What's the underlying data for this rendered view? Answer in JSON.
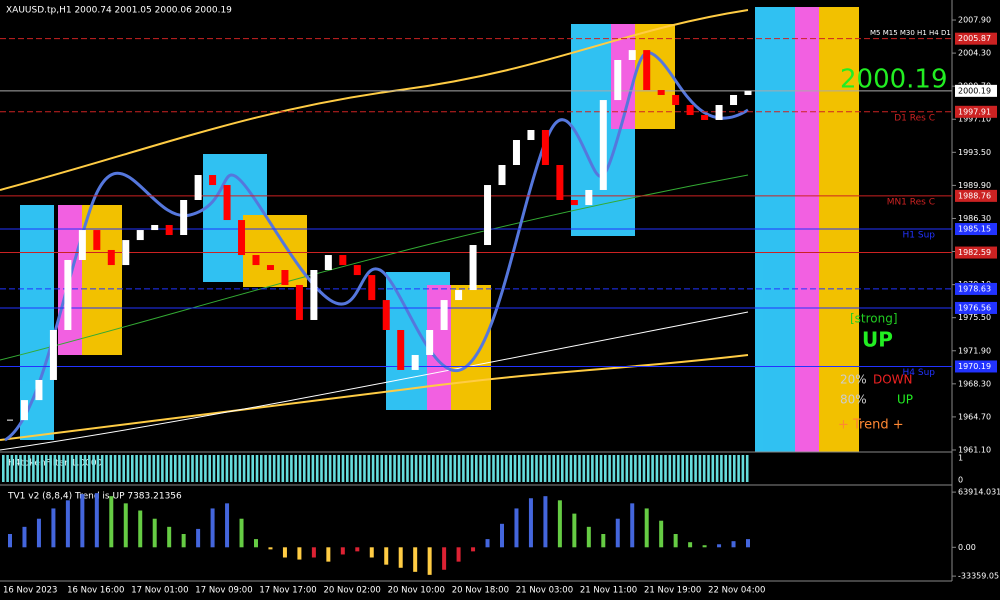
{
  "chart_data": {
    "type": "candlestick",
    "title": "XAUUSD.tp,H1  2000.74 2001.05 2000.06 2000.19",
    "close": [
      1964.35,
      1966.53,
      1968.72,
      1974.16,
      1981.78,
      1985.04,
      1982.87,
      1981.23,
      1983.95,
      1985.04,
      1985.59,
      1984.5,
      1988.31,
      1991.03,
      1989.94,
      1986.13,
      1982.32,
      1981.23,
      1980.69,
      1979.06,
      1975.25,
      1980.69,
      1982.32,
      1981.23,
      1980.14,
      1977.42,
      1974.16,
      1969.81,
      1971.44,
      1974.16,
      1977.42,
      1978.51,
      1983.41,
      1989.94,
      1992.12,
      1994.84,
      1995.93,
      1992.12,
      1988.31,
      1987.76,
      1989.4,
      1999.19,
      2003.55,
      2004.63,
      2000.28,
      1999.74,
      1998.65,
      1997.56,
      1997.02,
      1998.65,
      1999.74,
      2000.19
    ],
    "candle_colors": {
      "up": "#ffffff",
      "down": "#ff0000"
    },
    "ylim": [
      1960.88,
      2010.08
    ],
    "yticks": [
      {
        "value": 2007.9,
        "label": "2007.90"
      },
      {
        "value": 2004.3,
        "label": "2004.30"
      },
      {
        "value": 2000.7,
        "label": "2000.70"
      },
      {
        "value": 1997.1,
        "label": "1997.10"
      },
      {
        "value": 1993.5,
        "label": "1993.50"
      },
      {
        "value": 1989.9,
        "label": "1989.90"
      },
      {
        "value": 1986.3,
        "label": "1986.30"
      },
      {
        "value": 1982.7,
        "label": "1982.70"
      },
      {
        "value": 1979.1,
        "label": "1979.10"
      },
      {
        "value": 1975.5,
        "label": "1975.50"
      },
      {
        "value": 1971.9,
        "label": "1971.90"
      },
      {
        "value": 1968.3,
        "label": "1968.30"
      },
      {
        "value": 1964.7,
        "label": "1964.70"
      },
      {
        "value": 1961.1,
        "label": "1961.10"
      }
    ],
    "levels": [
      {
        "value": 2005.87,
        "label": "2005.87",
        "color": "#cc2222",
        "dash": true
      },
      {
        "value": 2000.19,
        "label": "2000.19",
        "color": "#aaaaaa",
        "dash": false
      },
      {
        "value": 1997.91,
        "label": "1997.91",
        "color": "#cc2222",
        "dash": true,
        "text": "D1 Res C"
      },
      {
        "value": 1988.76,
        "label": "1988.76",
        "color": "#cc2222",
        "dash": false,
        "text": "MN1 Res C"
      },
      {
        "value": 1985.15,
        "label": "1985.15",
        "color": "#2233ff",
        "dash": false,
        "text": "H1 Sup"
      },
      {
        "value": 1982.59,
        "label": "1982.59",
        "color": "#cc2222",
        "dash": false
      },
      {
        "value": 1978.63,
        "label": "1978.63",
        "color": "#2233ff",
        "dash": true
      },
      {
        "value": 1976.56,
        "label": "1976.56",
        "color": "#2233ff",
        "dash": false
      },
      {
        "value": 1970.19,
        "label": "1970.19",
        "color": "#2233ff",
        "dash": false,
        "text": "H4 Sup"
      }
    ],
    "info": {
      "timeframes": "M5 M15 M30 H1 H4 D1",
      "price": "2000.19",
      "strength": "[strong]",
      "direction": "UP",
      "down_pct": "20%",
      "down": "DOWN",
      "up_pct": "80%",
      "up": "UP",
      "trend": "+   Trend   +"
    },
    "filter": {
      "title": "H4tokenFilter 1.0000",
      "yticks": [
        1,
        0
      ],
      "color": "#66dddd"
    },
    "oscillator": {
      "title": "TV1 v2 (8,8,4) Trend is UP 7383.21356",
      "values": [
        15400,
        23700,
        33100,
        45000,
        54400,
        61500,
        62700,
        59200,
        50900,
        42600,
        33100,
        23700,
        15400,
        21300,
        45000,
        50900,
        33100,
        9500,
        -2400,
        -11800,
        -14200,
        -11800,
        -16600,
        -8300,
        -4700,
        -11800,
        -20100,
        -23700,
        -28400,
        -31900,
        -26000,
        -16600,
        -4700,
        9500,
        27200,
        45000,
        56800,
        59200,
        54400,
        39000,
        23700,
        15400,
        33100,
        50900,
        45000,
        30800,
        15400,
        5900,
        2400,
        3500,
        7100,
        9500
      ],
      "colors": {
        "pos_rising": "#4466dd",
        "pos_falling": "#66cc44",
        "neg_falling": "#ffcc44",
        "neg_rising": "#dd2233"
      },
      "ylim": [
        -37856,
        70980
      ],
      "yticks": [
        {
          "value": 63914.031,
          "label": "63914.031"
        },
        {
          "value": 0,
          "label": "0.00"
        },
        {
          "value": -33359.05,
          "label": "-33359.05"
        }
      ]
    },
    "x_labels": [
      "16 Nov 2023",
      "16 Nov 16:00",
      "17 Nov 01:00",
      "17 Nov 09:00",
      "17 Nov 17:00",
      "20 Nov 02:00",
      "20 Nov 10:00",
      "20 Nov 18:00",
      "21 Nov 03:00",
      "21 Nov 11:00",
      "21 Nov 19:00",
      "22 Nov 04:00"
    ]
  }
}
